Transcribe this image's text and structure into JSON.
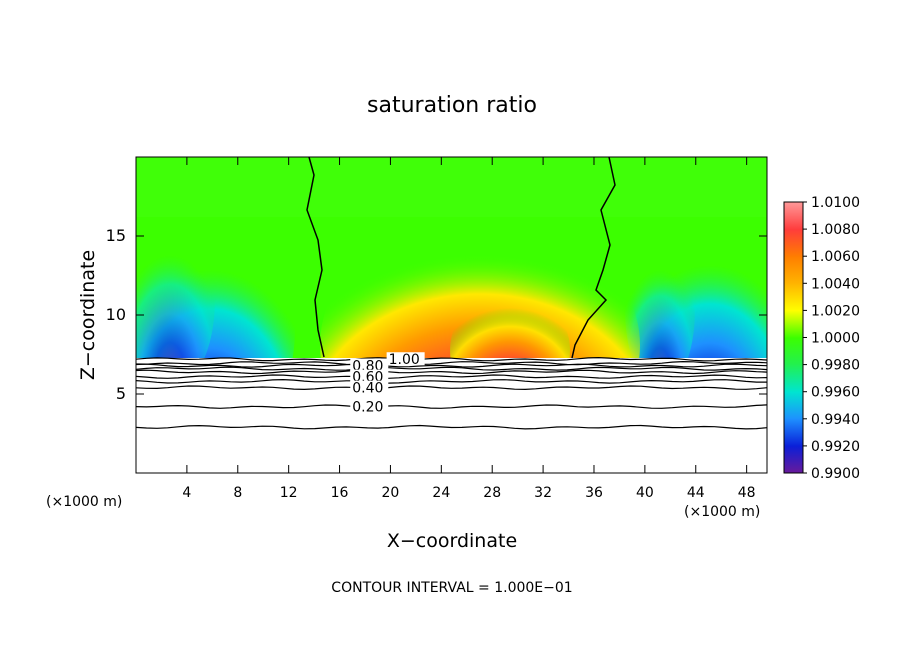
{
  "chart_data": {
    "type": "contour",
    "title": "saturation ratio",
    "xlabel": "X−coordinate",
    "ylabel": "Z−coordinate",
    "x_unit_label": "(×1000 m)",
    "z_unit_label": "(×1000 m)",
    "xlim": [
      0,
      49.6
    ],
    "ylim": [
      0,
      20
    ],
    "x_ticks": [
      4,
      8,
      12,
      16,
      20,
      24,
      28,
      32,
      36,
      40,
      44,
      48
    ],
    "y_ticks": [
      5,
      10,
      15
    ],
    "footer": "CONTOUR INTERVAL = 1.000E−01",
    "colorbar": {
      "levels": [
        "1.0100",
        "1.0080",
        "1.0060",
        "1.0040",
        "1.0020",
        "1.0000",
        "0.9980",
        "0.9960",
        "0.9940",
        "0.9920",
        "0.9900"
      ],
      "colors": [
        "#ff9999",
        "#ff3c3c",
        "#ff7d00",
        "#ffb400",
        "#ffff00",
        "#3cff00",
        "#22f050",
        "#00e5d0",
        "#1e90ff",
        "#0a1fd8",
        "#6a1a9a"
      ]
    },
    "contour_lines": [
      {
        "label": "1.00",
        "value": 1.0,
        "z": 7.2
      },
      {
        "label": "0.80",
        "value": 0.8,
        "z": 6.8
      },
      {
        "label": "0.60",
        "value": 0.6,
        "z": 6.1
      },
      {
        "label": "0.40",
        "value": 0.4,
        "z": 5.4
      },
      {
        "label": "0.20",
        "value": 0.2,
        "z": 4.2
      }
    ],
    "extra_contour_levels_z": [
      6.95,
      6.6,
      6.4,
      5.8,
      2.9
    ]
  }
}
